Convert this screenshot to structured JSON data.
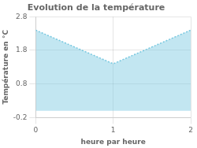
{
  "chart_data": {
    "type": "area",
    "title": "Evolution de la température",
    "x_label": "heure par heure",
    "y_label": "Température en °C",
    "x": [
      0,
      1,
      2
    ],
    "values": [
      2.4,
      1.4,
      2.4
    ],
    "color": "#78c8e0",
    "line_style": "dotted",
    "xlim": [
      0,
      2
    ],
    "ylim": [
      -0.2,
      2.8
    ],
    "xticks": [
      0,
      1,
      2
    ],
    "yticks": [
      -0.2,
      0.8,
      1.8,
      2.8
    ],
    "grid": true
  }
}
